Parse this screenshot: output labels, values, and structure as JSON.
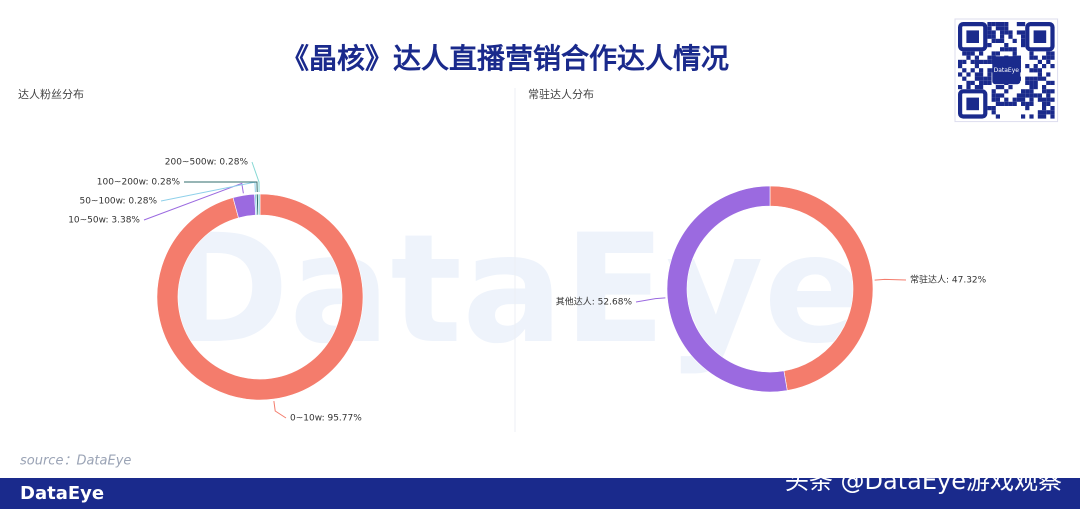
{
  "title": "《晶核》达人直播营销合作达人情况",
  "background_watermark": "DataEye",
  "qr_label": "DataEye",
  "chart_data": [
    {
      "type": "donut",
      "title": "达人粉丝分布",
      "categories": [
        "0~10w",
        "10~50w",
        "50~100w",
        "100~200w",
        "200~500w"
      ],
      "values": [
        95.77,
        3.38,
        0.28,
        0.28,
        0.28
      ],
      "value_labels": [
        "0~10w: 95.77%",
        "10~50w: 3.38%",
        "50~100w: 0.28%",
        "100~200w: 0.28%",
        "200~500w: 0.28%"
      ],
      "colors": [
        "#f47c6c",
        "#9b6ae0",
        "#8fd0ea",
        "#2f6b6b",
        "#86d8d4"
      ]
    },
    {
      "type": "donut",
      "title": "常驻达人分布",
      "categories": [
        "常驻达人",
        "其他达人"
      ],
      "values": [
        47.32,
        52.68
      ],
      "value_labels": [
        "常驻达人: 47.32%",
        "其他达人: 52.68%"
      ],
      "colors": [
        "#f47c6c",
        "#9b6ae0"
      ]
    }
  ],
  "footer": {
    "source": "source：DataEye",
    "logo": "DataEye",
    "watermark": "头条 @DataEye游戏观察"
  }
}
